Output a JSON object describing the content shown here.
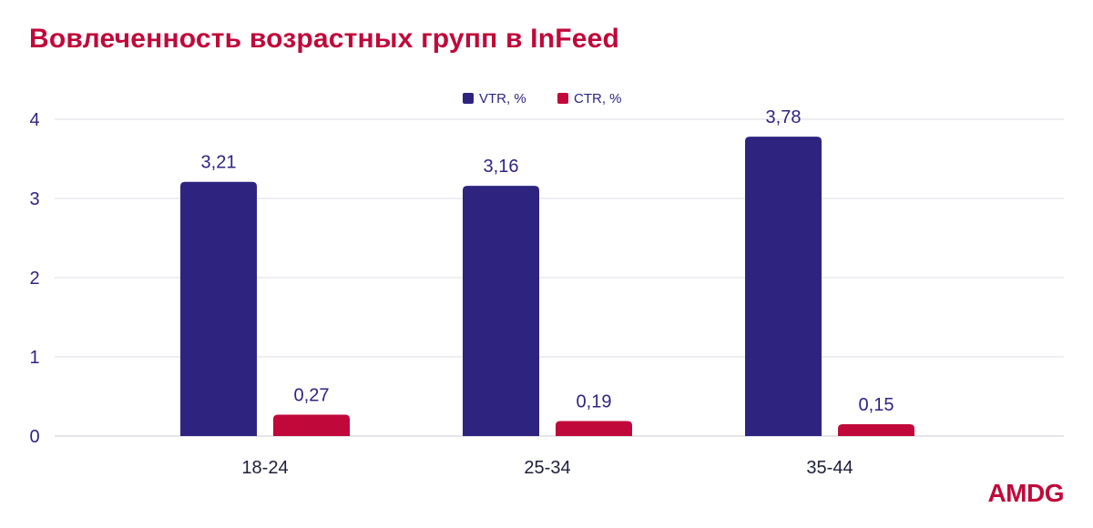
{
  "title": "Вовлеченность возрастных групп в InFeed",
  "logo": "AMDG",
  "chart_data": {
    "type": "bar",
    "categories": [
      "18-24",
      "25-34",
      "35-44"
    ],
    "series": [
      {
        "name": "VTR, %",
        "values": [
          3.21,
          3.16,
          3.78
        ],
        "color": "#2e2480",
        "labels": [
          "3,21",
          "3,16",
          "3,78"
        ]
      },
      {
        "name": "CTR, %",
        "values": [
          0.27,
          0.19,
          0.15
        ],
        "color": "#c0093a",
        "labels": [
          "0,27",
          "0,19",
          "0,15"
        ]
      }
    ],
    "yticks": [
      "0",
      "1",
      "2",
      "3",
      "4"
    ],
    "ylim": [
      0,
      4
    ],
    "grid": true,
    "legend": "top-center"
  }
}
